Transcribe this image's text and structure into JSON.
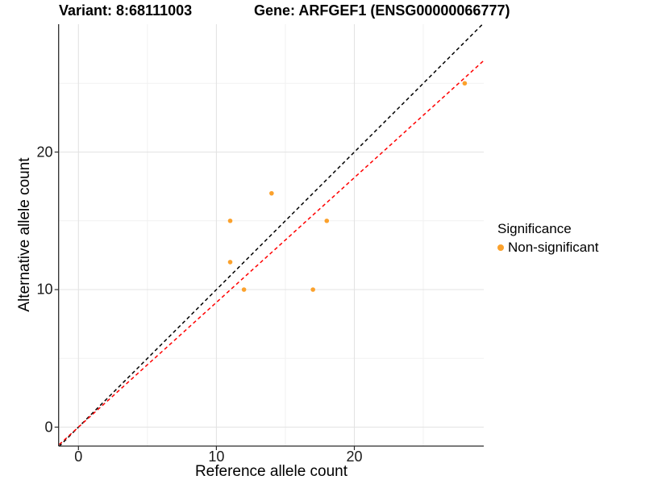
{
  "figure": {
    "title_left": "Variant: 8:68111003",
    "title_right": "Gene: ARFGEF1 (ENSG00000066777)"
  },
  "chart_data": {
    "type": "scatter",
    "title": "Variant: 8:68111003   Gene: ARFGEF1 (ENSG00000066777)",
    "xlabel": "Reference allele count",
    "ylabel": "Alternative allele count",
    "xlim": [
      -1.44,
      29.34
    ],
    "ylim": [
      -1.37,
      29.2
    ],
    "x_ticks": [
      0,
      10,
      20
    ],
    "y_ticks": [
      0,
      10,
      20
    ],
    "x_minor_gridlines": [
      5,
      15,
      25
    ],
    "y_minor_gridlines": [
      5,
      15,
      25
    ],
    "grid": true,
    "series": [
      {
        "name": "Non-significant",
        "color": "#FBA12C",
        "points": [
          {
            "x": 11,
            "y": 12
          },
          {
            "x": 11,
            "y": 15
          },
          {
            "x": 12,
            "y": 10
          },
          {
            "x": 14,
            "y": 17
          },
          {
            "x": 17,
            "y": 10
          },
          {
            "x": 18,
            "y": 15
          },
          {
            "x": 28,
            "y": 25
          }
        ]
      }
    ],
    "lines": [
      {
        "name": "identity-line",
        "slope": 1.0,
        "intercept": 0,
        "color": "#000000",
        "style": "dashed"
      },
      {
        "name": "fit-line",
        "slope": 0.907,
        "intercept": 0,
        "color": "#FF0000",
        "style": "dashed"
      }
    ],
    "legend": {
      "title": "Significance",
      "position": "right",
      "items": [
        {
          "label": "Non-significant",
          "color": "#FBA12C"
        }
      ]
    }
  }
}
